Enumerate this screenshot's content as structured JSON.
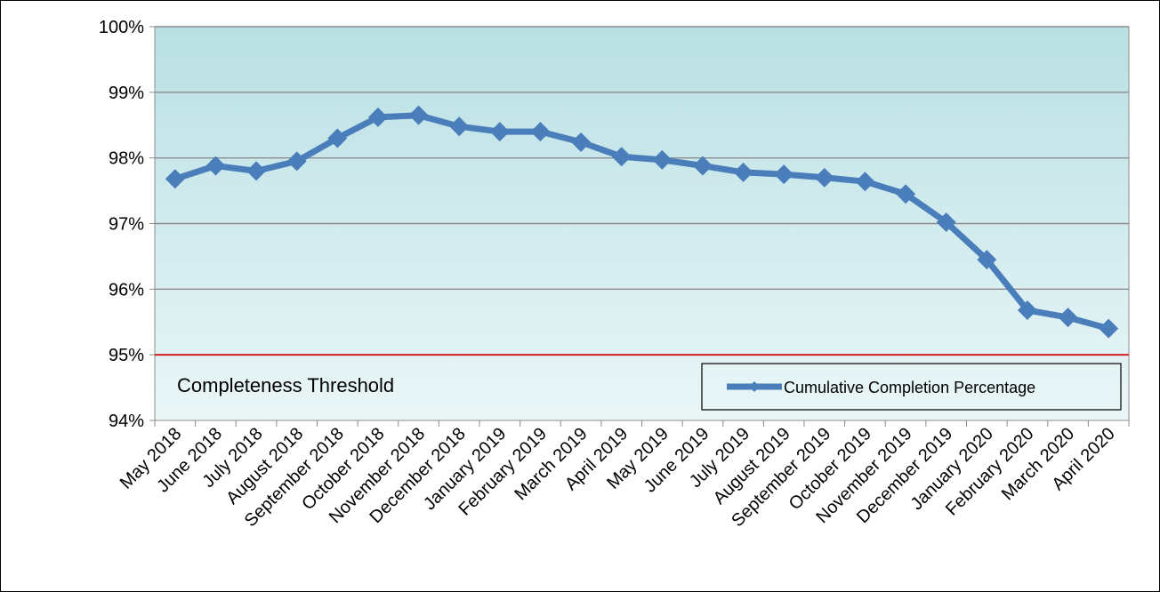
{
  "chart_data": {
    "type": "line",
    "categories": [
      "May 2018",
      "June 2018",
      "July 2018",
      "August 2018",
      "September 2018",
      "October 2018",
      "November 2018",
      "December 2018",
      "January 2019",
      "February 2019",
      "March 2019",
      "April 2019",
      "May 2019",
      "June 2019",
      "July 2019",
      "August 2019",
      "September 2019",
      "October 2019",
      "November 2019",
      "December 2019",
      "January 2020",
      "February 2020",
      "March 2020",
      "April 2020"
    ],
    "series": [
      {
        "name": "Cumulative Completion Percentage",
        "values": [
          97.68,
          97.88,
          97.8,
          97.95,
          98.3,
          98.62,
          98.65,
          98.48,
          98.4,
          98.4,
          98.24,
          98.02,
          97.97,
          97.88,
          97.78,
          97.75,
          97.7,
          97.64,
          97.45,
          97.02,
          96.45,
          95.68,
          95.57,
          95.4
        ],
        "color": "#4a7ebb"
      }
    ],
    "threshold": {
      "value": 95,
      "label": "Completeness Threshold",
      "color": "#d42020"
    },
    "yticks": [
      "94%",
      "95%",
      "96%",
      "97%",
      "98%",
      "99%",
      "100%"
    ],
    "ylim": [
      94,
      100
    ],
    "grid": true,
    "legend": "bottom-right",
    "plot_background": [
      "#b9e0e4",
      "#eaf6f7"
    ]
  }
}
